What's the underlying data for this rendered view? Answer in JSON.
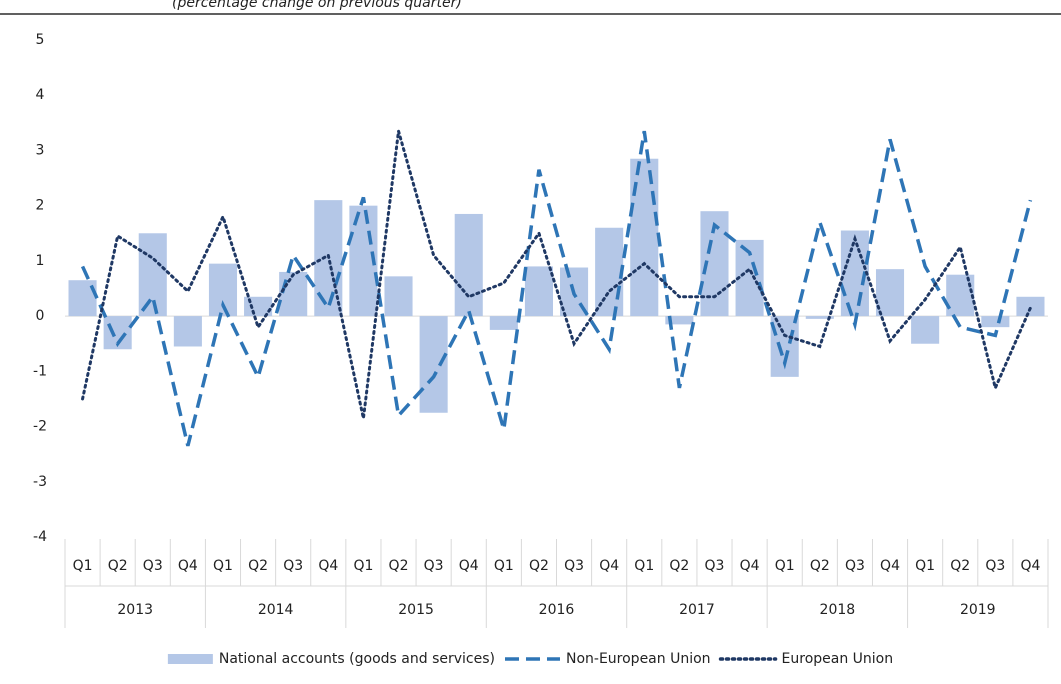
{
  "chart_data": {
    "type": "bar-line",
    "subtitle": "(percentage change on previous quarter)",
    "categories": [
      "Q1",
      "Q2",
      "Q3",
      "Q4",
      "Q1",
      "Q2",
      "Q3",
      "Q4",
      "Q1",
      "Q2",
      "Q3",
      "Q4",
      "Q1",
      "Q2",
      "Q3",
      "Q4",
      "Q1",
      "Q2",
      "Q3",
      "Q4",
      "Q1",
      "Q2",
      "Q3",
      "Q4",
      "Q1",
      "Q2",
      "Q3",
      "Q4"
    ],
    "groups": [
      "2013",
      "2014",
      "2015",
      "2016",
      "2017",
      "2018",
      "2019"
    ],
    "ylim": [
      -4,
      5
    ],
    "yticks": [
      -4,
      -3,
      -2,
      -1,
      0,
      1,
      2,
      3,
      4,
      5
    ],
    "legend": "bottom",
    "series": [
      {
        "name": "National accounts (goods and services)",
        "type": "bar",
        "color": "#b4c7e7",
        "values": [
          0.65,
          -0.6,
          1.5,
          -0.55,
          0.95,
          0.35,
          0.8,
          2.1,
          2.0,
          0.72,
          -1.75,
          1.85,
          -0.25,
          0.9,
          0.88,
          1.6,
          2.85,
          -0.15,
          1.9,
          1.38,
          -1.1,
          -0.05,
          1.55,
          0.85,
          -0.5,
          0.75,
          -0.2,
          0.35
        ]
      },
      {
        "name": "Non-European Union",
        "type": "line",
        "dash": "dashed",
        "color": "#2e75b6",
        "values": [
          0.9,
          -0.5,
          0.35,
          -2.35,
          0.2,
          -1.1,
          1.1,
          0.15,
          2.15,
          -1.8,
          -1.1,
          0.1,
          -2.05,
          2.65,
          0.4,
          -0.6,
          3.35,
          -1.3,
          1.65,
          1.15,
          -0.85,
          1.7,
          -0.15,
          3.2,
          0.9,
          -0.2,
          -0.35,
          2.1
        ]
      },
      {
        "name": "European Union",
        "type": "line",
        "dash": "dotted",
        "color": "#1f3864",
        "values": [
          -1.5,
          1.45,
          1.05,
          0.45,
          1.8,
          -0.2,
          0.75,
          1.1,
          -1.85,
          3.35,
          1.1,
          0.35,
          0.6,
          1.5,
          -0.5,
          0.45,
          0.95,
          0.35,
          0.35,
          0.85,
          -0.35,
          -0.55,
          1.4,
          -0.45,
          0.3,
          1.25,
          -1.3,
          0.15
        ]
      }
    ]
  }
}
